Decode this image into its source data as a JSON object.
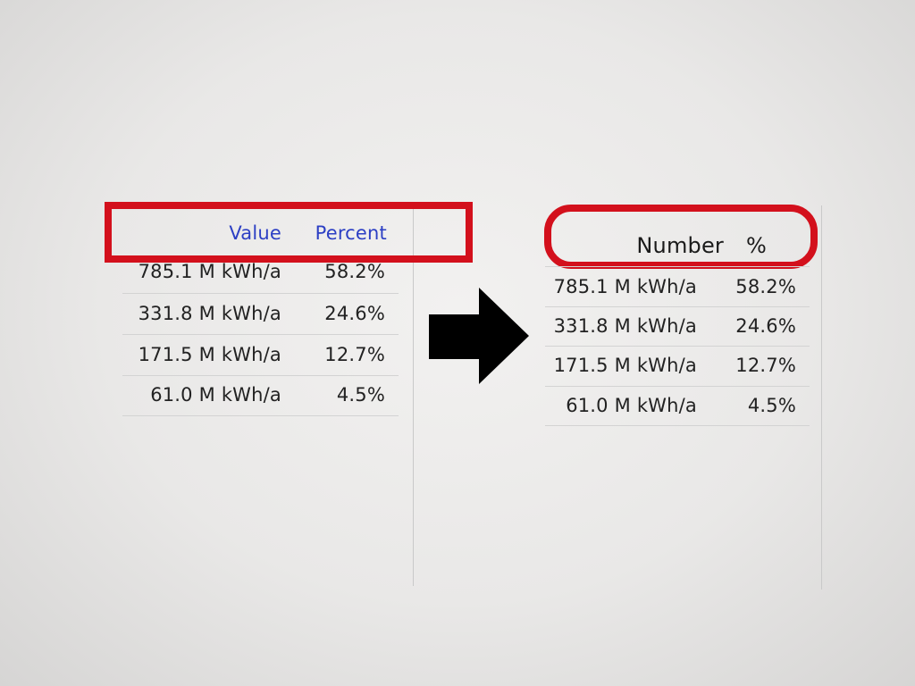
{
  "left_table": {
    "headers": {
      "value": "Value",
      "percent": "Percent"
    },
    "rows": [
      {
        "value": "785.1 M kWh/a",
        "percent": "58.2%"
      },
      {
        "value": "331.8 M kWh/a",
        "percent": "24.6%"
      },
      {
        "value": "171.5 M kWh/a",
        "percent": "12.7%"
      },
      {
        "value": "61.0 M kWh/a",
        "percent": "4.5%"
      }
    ]
  },
  "right_table": {
    "headers": {
      "value": "Number",
      "percent": "%"
    },
    "rows": [
      {
        "value": "785.1 M kWh/a",
        "percent": "58.2%"
      },
      {
        "value": "331.8 M kWh/a",
        "percent": "24.6%"
      },
      {
        "value": "171.5 M kWh/a",
        "percent": "12.7%"
      },
      {
        "value": "61.0 M kWh/a",
        "percent": "4.5%"
      }
    ]
  },
  "colors": {
    "highlight": "#d3101c",
    "header_link": "#2c3fc4",
    "arrow": "#000000"
  },
  "icons": {
    "arrow": "right-arrow-icon"
  }
}
